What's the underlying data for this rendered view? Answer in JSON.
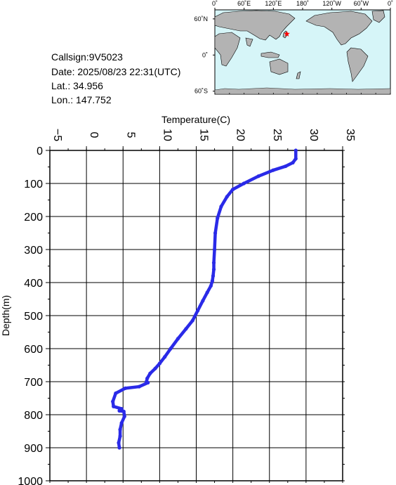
{
  "info": {
    "callsign": "Callsign:9V5023",
    "date": "Date:  2025/08/23 22:31(UTC)",
    "lat": "Lat.:   34.956",
    "lon": "Lon.:  147.752"
  },
  "map": {
    "lon_labels": [
      "0˚",
      "60˚E",
      "120˚E",
      "180˚",
      "120˚W",
      "60˚W",
      "0˚"
    ],
    "lat_labels": [
      "60˚N",
      "0˚",
      "60˚S"
    ],
    "marker": {
      "lon": 147.752,
      "lat": 34.956,
      "color": "#ff0000"
    },
    "ocean_color": "#d6f5f8",
    "land_color": "#b3b3b3"
  },
  "chart_data": {
    "type": "line",
    "xlabel": "Temperature(C)",
    "ylabel": "Depth(m)",
    "xlim": [
      -5,
      35
    ],
    "ylim": [
      1000,
      0
    ],
    "x_ticks": [
      -5,
      0,
      5,
      10,
      15,
      20,
      25,
      30,
      35
    ],
    "y_ticks": [
      0,
      100,
      200,
      300,
      400,
      500,
      600,
      700,
      800,
      900,
      1000
    ],
    "grid": true,
    "color": "#2a2ae8",
    "series": [
      {
        "temperature": [
          28.6,
          28.6,
          28.2,
          27.2,
          25.5,
          23.5,
          21.5,
          20.0,
          19.2,
          18.4,
          17.9,
          17.6,
          17.5,
          17.4,
          17.4,
          17.3,
          17.2,
          17.0,
          16.5,
          15.9,
          15.2,
          14.5,
          13.6,
          12.5,
          11.5,
          10.7,
          10.0,
          9.4,
          8.7,
          8.3,
          8.2,
          8.4,
          7.2,
          5.3,
          4.0,
          3.6,
          3.7,
          4.8,
          4.5,
          5.1,
          5.2,
          4.8,
          4.6,
          4.6,
          4.4,
          4.5
        ],
        "depth": [
          0,
          25,
          37,
          48,
          60,
          78,
          100,
          118,
          140,
          170,
          205,
          250,
          300,
          340,
          360,
          380,
          395,
          410,
          430,
          455,
          485,
          515,
          540,
          570,
          600,
          625,
          645,
          660,
          675,
          690,
          700,
          703,
          715,
          720,
          735,
          760,
          775,
          782,
          788,
          790,
          805,
          825,
          845,
          865,
          885,
          900
        ]
      }
    ]
  }
}
